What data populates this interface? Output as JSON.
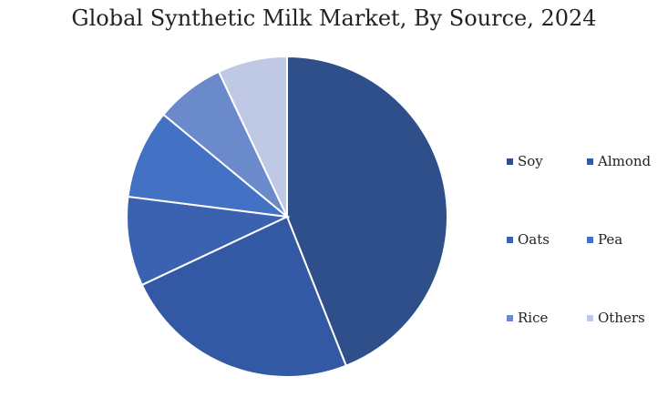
{
  "chart_data": {
    "type": "pie",
    "title": "Global Synthetic Milk Market, By Source, 2024",
    "categories": [
      "Soy",
      "Almond",
      "Oats",
      "Pea",
      "Rice",
      "Others"
    ],
    "values": [
      44,
      24,
      9,
      9,
      7,
      7
    ],
    "colors": [
      "#2e4f8a",
      "#3459a4",
      "#3b62b0",
      "#4372c4",
      "#6b8acc",
      "#bfc8e4"
    ],
    "legend_position": "right"
  }
}
